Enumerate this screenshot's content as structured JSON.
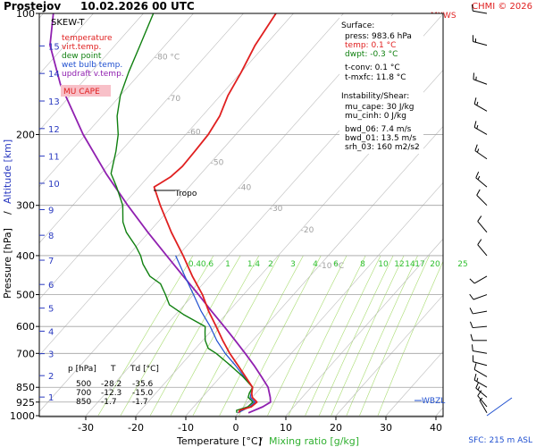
{
  "header": {
    "station": "Prostejov",
    "datetime": "10.02.2026 00 UTC",
    "copyright": "CHMI © 2026",
    "maxws": "MXWS"
  },
  "legend": {
    "title": "SKEW-T",
    "entries": [
      {
        "label": "temperature",
        "color": "#e02020"
      },
      {
        "label": "virt.temp.",
        "color": "#e02020"
      },
      {
        "label": "dew point",
        "color": "#108010"
      },
      {
        "label": "wet bulb temp.",
        "color": "#2050d0"
      },
      {
        "label": "updraft v.temp.",
        "color": "#9020b0"
      }
    ],
    "mucape_label": "MU CAPE"
  },
  "surface_info": {
    "title": "Surface:",
    "press": "press: 983.6 hPa",
    "temp": "temp: 0.1 °C",
    "dwpt": "dwpt: -0.3 °C",
    "tconv": "t-conv: 0.1 °C",
    "tmxfc": "t-mxfc: 11.8 °C",
    "instability_title": "Instability/Shear:",
    "mu_cape": "mu_cape: 30 J/kg",
    "mu_cinh": "mu_cinh: 0 J/kg",
    "bwd_06": "bwd_06: 7.4 m/s",
    "bwd_01": "bwd_01: 13.5 m/s",
    "srh_03": "srh_03: 160 m2/s2"
  },
  "table": {
    "headers": [
      "p [hPa]",
      "T",
      "Td [°C]"
    ],
    "rows": [
      [
        "500",
        "-28.2",
        "-35.6"
      ],
      [
        "700",
        "-12.3",
        "-15.0"
      ],
      [
        "850",
        "-1.7",
        "-1.7"
      ]
    ]
  },
  "labels": {
    "tropo": "Tropo",
    "wbzl": "WBZL",
    "sfc": "SFC: 215 m ASL",
    "mixing_title": "Mixing ratio [g/kg]"
  },
  "chart_data": {
    "type": "skew-t",
    "xlabel": "Temperature [°C]",
    "ylabel_left": "Pressure [hPa]",
    "ylabel_alt": "Altitude [km]",
    "x_ticks": [
      -30,
      -20,
      -10,
      0,
      10,
      20,
      30,
      40
    ],
    "p_ticks": [
      100,
      200,
      300,
      400,
      500,
      600,
      700,
      850,
      925,
      1000
    ],
    "alt_ticks": [
      1,
      2,
      3,
      4,
      5,
      6,
      7,
      8,
      9,
      10,
      11,
      12,
      13,
      14,
      15
    ],
    "isotherm_labels": [
      "-80 °C",
      "-70",
      "-60",
      "-50",
      "-40",
      "-30",
      "-20",
      "-10 °C"
    ],
    "mixing_ratio_labels": [
      "0.4",
      "0.6",
      "1",
      "1.4",
      "2",
      "3",
      "4",
      "6",
      "8",
      "10",
      "12",
      "14",
      "17",
      "20",
      "25"
    ],
    "grid": true,
    "series": [
      {
        "name": "temperature",
        "color": "#e02020",
        "points": [
          [
            983.6,
            0.1
          ],
          [
            970,
            -0.2
          ],
          [
            950,
            1.5
          ],
          [
            925,
            1.8
          ],
          [
            900,
            0.0
          ],
          [
            880,
            -0.8
          ],
          [
            850,
            -1.7
          ],
          [
            800,
            -5.0
          ],
          [
            750,
            -8.5
          ],
          [
            700,
            -12.3
          ],
          [
            650,
            -16.0
          ],
          [
            600,
            -19.8
          ],
          [
            550,
            -24.0
          ],
          [
            500,
            -28.2
          ],
          [
            450,
            -33.5
          ],
          [
            400,
            -39.0
          ],
          [
            350,
            -45.5
          ],
          [
            300,
            -52.5
          ],
          [
            270,
            -57.0
          ],
          [
            265,
            -56.5
          ],
          [
            255,
            -55.5
          ],
          [
            240,
            -55.0
          ],
          [
            220,
            -55.2
          ],
          [
            200,
            -55.5
          ],
          [
            180,
            -56.5
          ],
          [
            160,
            -58.5
          ],
          [
            140,
            -60.0
          ],
          [
            120,
            -62.0
          ],
          [
            100,
            -63.5
          ]
        ]
      },
      {
        "name": "dew point",
        "color": "#108010",
        "points": [
          [
            983.6,
            -0.3
          ],
          [
            970,
            -0.8
          ],
          [
            950,
            0.8
          ],
          [
            925,
            1.0
          ],
          [
            900,
            -0.8
          ],
          [
            880,
            -1.3
          ],
          [
            850,
            -1.7
          ],
          [
            800,
            -5.5
          ],
          [
            750,
            -10.0
          ],
          [
            700,
            -15.0
          ],
          [
            680,
            -17.5
          ],
          [
            650,
            -19.5
          ],
          [
            620,
            -21.0
          ],
          [
            600,
            -22.0
          ],
          [
            560,
            -28.5
          ],
          [
            530,
            -33.0
          ],
          [
            500,
            -35.6
          ],
          [
            470,
            -38.5
          ],
          [
            450,
            -42.0
          ],
          [
            420,
            -45.5
          ],
          [
            400,
            -47.5
          ],
          [
            380,
            -50.0
          ],
          [
            350,
            -54.5
          ],
          [
            330,
            -57.0
          ],
          [
            300,
            -60.0
          ],
          [
            270,
            -64.5
          ],
          [
            250,
            -68.0
          ],
          [
            220,
            -71.0
          ],
          [
            200,
            -73.5
          ],
          [
            180,
            -77.0
          ],
          [
            160,
            -80.0
          ],
          [
            140,
            -82.5
          ],
          [
            120,
            -85.0
          ],
          [
            100,
            -88.0
          ]
        ]
      },
      {
        "name": "wet bulb temp.",
        "color": "#2050d0",
        "points": [
          [
            983.6,
            -0.1
          ],
          [
            950,
            1.2
          ],
          [
            925,
            1.4
          ],
          [
            900,
            -0.4
          ],
          [
            850,
            -1.7
          ],
          [
            800,
            -5.3
          ],
          [
            750,
            -9.0
          ],
          [
            700,
            -13.2
          ],
          [
            650,
            -17.2
          ],
          [
            600,
            -21.0
          ],
          [
            550,
            -25.5
          ],
          [
            500,
            -30.0
          ],
          [
            450,
            -35.0
          ],
          [
            400,
            -40.5
          ]
        ]
      },
      {
        "name": "updraft v.temp.",
        "color": "#9020b0",
        "points": [
          [
            983.6,
            2.0
          ],
          [
            950,
            3.8
          ],
          [
            925,
            4.5
          ],
          [
            900,
            3.6
          ],
          [
            850,
            1.4
          ],
          [
            800,
            -1.8
          ],
          [
            750,
            -5.3
          ],
          [
            700,
            -9.2
          ],
          [
            650,
            -13.5
          ],
          [
            600,
            -18.2
          ],
          [
            550,
            -23.4
          ],
          [
            500,
            -29.0
          ],
          [
            450,
            -35.3
          ],
          [
            400,
            -42.3
          ],
          [
            350,
            -50.2
          ],
          [
            300,
            -59.0
          ],
          [
            250,
            -69.0
          ],
          [
            200,
            -80.5
          ],
          [
            150,
            -94.0
          ],
          [
            120,
            -103.0
          ],
          [
            100,
            -108.0
          ]
        ]
      }
    ],
    "wind_barbs": [
      {
        "p": 100,
        "dir": 280,
        "speed_kt": 10
      },
      {
        "p": 120,
        "dir": 285,
        "speed_kt": 15
      },
      {
        "p": 150,
        "dir": 290,
        "speed_kt": 15
      },
      {
        "p": 175,
        "dir": 300,
        "speed_kt": 15
      },
      {
        "p": 200,
        "dir": 300,
        "speed_kt": 15
      },
      {
        "p": 230,
        "dir": 305,
        "speed_kt": 15
      },
      {
        "p": 270,
        "dir": 310,
        "speed_kt": 15
      },
      {
        "p": 300,
        "dir": 315,
        "speed_kt": 10
      },
      {
        "p": 350,
        "dir": 320,
        "speed_kt": 10
      },
      {
        "p": 400,
        "dir": 320,
        "speed_kt": 10
      },
      {
        "p": 450,
        "dir": 240,
        "speed_kt": 10
      },
      {
        "p": 500,
        "dir": 250,
        "speed_kt": 10
      },
      {
        "p": 550,
        "dir": 260,
        "speed_kt": 10
      },
      {
        "p": 600,
        "dir": 265,
        "speed_kt": 10
      },
      {
        "p": 650,
        "dir": 270,
        "speed_kt": 10
      },
      {
        "p": 700,
        "dir": 280,
        "speed_kt": 10
      },
      {
        "p": 750,
        "dir": 285,
        "speed_kt": 10
      },
      {
        "p": 800,
        "dir": 300,
        "speed_kt": 10
      },
      {
        "p": 850,
        "dir": 300,
        "speed_kt": 15
      },
      {
        "p": 900,
        "dir": 310,
        "speed_kt": 15
      },
      {
        "p": 950,
        "dir": 320,
        "speed_kt": 10
      },
      {
        "p": 983.6,
        "dir": 330,
        "speed_kt": 5
      }
    ]
  }
}
